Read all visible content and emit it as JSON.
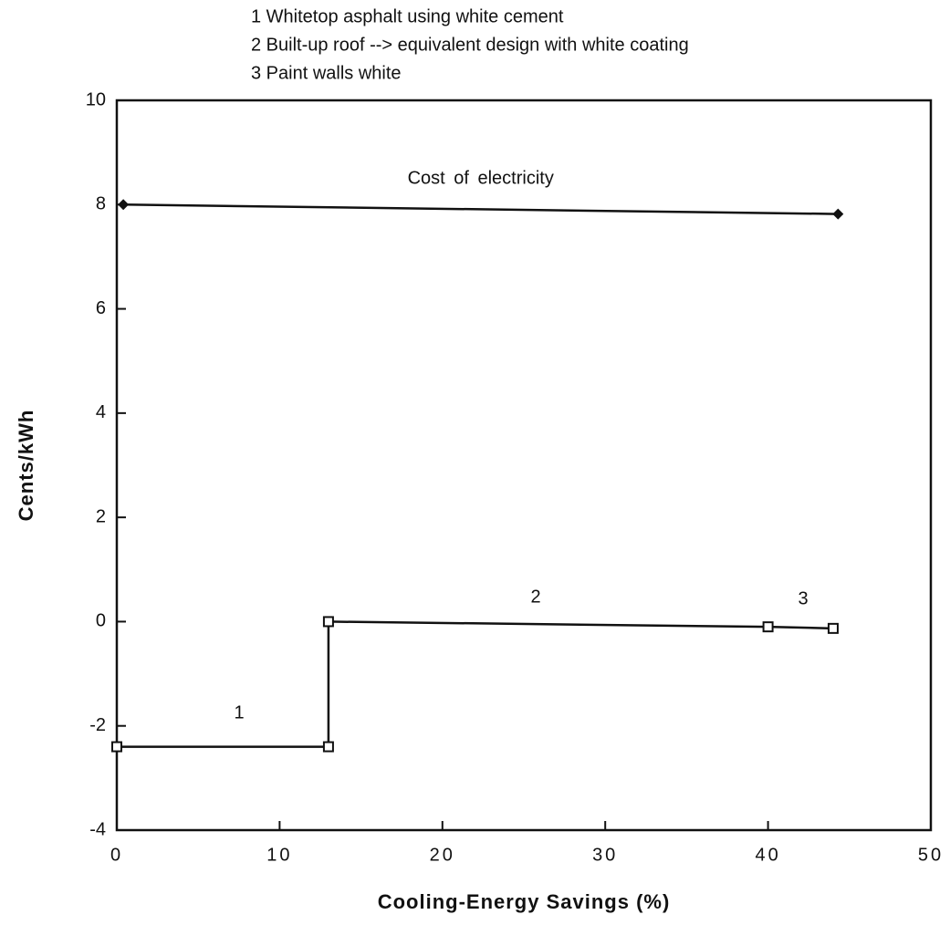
{
  "chart_data": {
    "type": "line",
    "notes": [
      "1 Whitetop asphalt using white cement",
      "2 Built-up roof --> equivalent design with white coating",
      "3 Paint walls white"
    ],
    "x_label": "Cooling-Energy  Savings  (%)",
    "y_label": "Cents/kWh",
    "xlim": [
      0,
      50
    ],
    "xticks": [
      0,
      10,
      20,
      30,
      40,
      50
    ],
    "ylim": [
      -4,
      10
    ],
    "yticks": [
      -4,
      -2,
      0,
      2,
      4,
      6,
      8,
      10
    ],
    "series": [
      {
        "name": "Cost of electricity",
        "color": "#111111",
        "marker": "diamond",
        "x": [
          0.4,
          44.3
        ],
        "values": [
          8.0,
          7.82
        ]
      },
      {
        "color": "#111111",
        "marker": "square",
        "x": [
          0,
          13,
          13,
          40,
          44
        ],
        "values": [
          -2.4,
          -2.4,
          0,
          -0.1,
          -0.13
        ]
      }
    ],
    "annotations": [
      "1",
      "2",
      "3"
    ]
  }
}
